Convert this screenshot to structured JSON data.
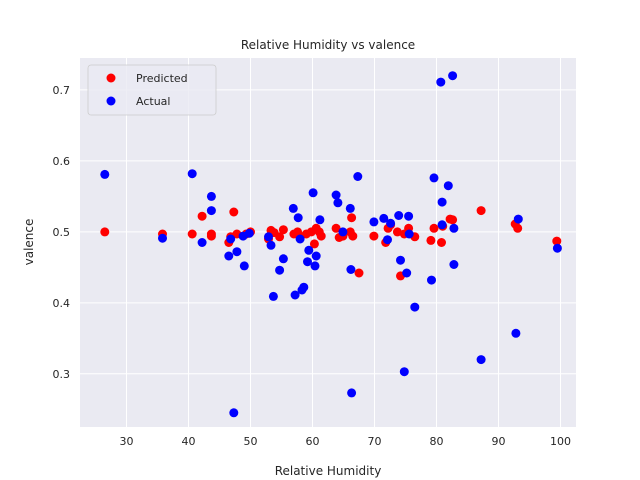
{
  "chart_data": {
    "type": "scatter",
    "title": "Relative Humidity vs valence",
    "xlabel": "Relative Humidity",
    "ylabel": "valence",
    "xlim": [
      22.5,
      102.5
    ],
    "ylim": [
      0.225,
      0.745
    ],
    "xticks": [
      30,
      40,
      50,
      60,
      70,
      80,
      90,
      100
    ],
    "yticks": [
      0.3,
      0.4,
      0.5,
      0.6,
      0.7
    ],
    "grid": true,
    "legend_position": "top-left",
    "background_color": "#eaeaf2",
    "series": [
      {
        "name": "Predicted",
        "color": "#ff0000",
        "points": [
          [
            26.5,
            0.5
          ],
          [
            35.8,
            0.497
          ],
          [
            40.6,
            0.497
          ],
          [
            42.2,
            0.522
          ],
          [
            43.7,
            0.497
          ],
          [
            43.7,
            0.494
          ],
          [
            46.5,
            0.485
          ],
          [
            46.8,
            0.493
          ],
          [
            47.3,
            0.528
          ],
          [
            47.8,
            0.497
          ],
          [
            49.3,
            0.497
          ],
          [
            50.0,
            0.5
          ],
          [
            52.9,
            0.49
          ],
          [
            53.3,
            0.502
          ],
          [
            53.8,
            0.499
          ],
          [
            54.7,
            0.493
          ],
          [
            55.3,
            0.503
          ],
          [
            57.0,
            0.497
          ],
          [
            57.6,
            0.5
          ],
          [
            58.0,
            0.493
          ],
          [
            59.0,
            0.497
          ],
          [
            59.8,
            0.5
          ],
          [
            60.3,
            0.483
          ],
          [
            60.6,
            0.505
          ],
          [
            61.1,
            0.5
          ],
          [
            61.4,
            0.494
          ],
          [
            63.8,
            0.505
          ],
          [
            64.3,
            0.492
          ],
          [
            64.9,
            0.494
          ],
          [
            66.1,
            0.5
          ],
          [
            66.3,
            0.52
          ],
          [
            66.5,
            0.494
          ],
          [
            67.5,
            0.442
          ],
          [
            69.9,
            0.494
          ],
          [
            71.8,
            0.485
          ],
          [
            72.2,
            0.505
          ],
          [
            72.6,
            0.51
          ],
          [
            73.7,
            0.5
          ],
          [
            74.2,
            0.438
          ],
          [
            74.8,
            0.497
          ],
          [
            75.5,
            0.505
          ],
          [
            76.5,
            0.493
          ],
          [
            79.1,
            0.488
          ],
          [
            79.6,
            0.505
          ],
          [
            80.8,
            0.485
          ],
          [
            81.0,
            0.508
          ],
          [
            82.2,
            0.518
          ],
          [
            82.6,
            0.517
          ],
          [
            87.2,
            0.53
          ],
          [
            92.7,
            0.511
          ],
          [
            93.1,
            0.505
          ],
          [
            99.4,
            0.487
          ]
        ]
      },
      {
        "name": "Actual",
        "color": "#0000ff",
        "points": [
          [
            26.5,
            0.581
          ],
          [
            35.8,
            0.491
          ],
          [
            40.6,
            0.582
          ],
          [
            42.2,
            0.485
          ],
          [
            43.7,
            0.55
          ],
          [
            43.7,
            0.53
          ],
          [
            46.5,
            0.466
          ],
          [
            46.8,
            0.49
          ],
          [
            47.3,
            0.245
          ],
          [
            47.8,
            0.472
          ],
          [
            48.8,
            0.494
          ],
          [
            49.0,
            0.452
          ],
          [
            49.8,
            0.498
          ],
          [
            52.9,
            0.493
          ],
          [
            53.3,
            0.481
          ],
          [
            53.7,
            0.409
          ],
          [
            54.7,
            0.446
          ],
          [
            55.3,
            0.462
          ],
          [
            56.9,
            0.533
          ],
          [
            57.2,
            0.411
          ],
          [
            57.7,
            0.52
          ],
          [
            58.0,
            0.49
          ],
          [
            58.3,
            0.418
          ],
          [
            58.6,
            0.422
          ],
          [
            59.2,
            0.458
          ],
          [
            59.4,
            0.474
          ],
          [
            60.1,
            0.555
          ],
          [
            60.4,
            0.452
          ],
          [
            60.6,
            0.466
          ],
          [
            61.2,
            0.517
          ],
          [
            63.8,
            0.552
          ],
          [
            64.1,
            0.541
          ],
          [
            64.9,
            0.5
          ],
          [
            66.1,
            0.533
          ],
          [
            66.2,
            0.447
          ],
          [
            66.3,
            0.273
          ],
          [
            67.3,
            0.578
          ],
          [
            69.9,
            0.514
          ],
          [
            71.5,
            0.519
          ],
          [
            72.1,
            0.489
          ],
          [
            72.6,
            0.512
          ],
          [
            73.9,
            0.523
          ],
          [
            74.2,
            0.46
          ],
          [
            74.8,
            0.303
          ],
          [
            75.2,
            0.442
          ],
          [
            75.5,
            0.522
          ],
          [
            75.6,
            0.497
          ],
          [
            76.5,
            0.394
          ],
          [
            79.2,
            0.432
          ],
          [
            79.6,
            0.576
          ],
          [
            80.7,
            0.711
          ],
          [
            80.9,
            0.542
          ],
          [
            80.9,
            0.51
          ],
          [
            81.9,
            0.565
          ],
          [
            82.6,
            0.72
          ],
          [
            82.8,
            0.454
          ],
          [
            82.8,
            0.505
          ],
          [
            87.2,
            0.32
          ],
          [
            92.8,
            0.357
          ],
          [
            93.2,
            0.518
          ],
          [
            99.5,
            0.477
          ]
        ]
      }
    ]
  }
}
